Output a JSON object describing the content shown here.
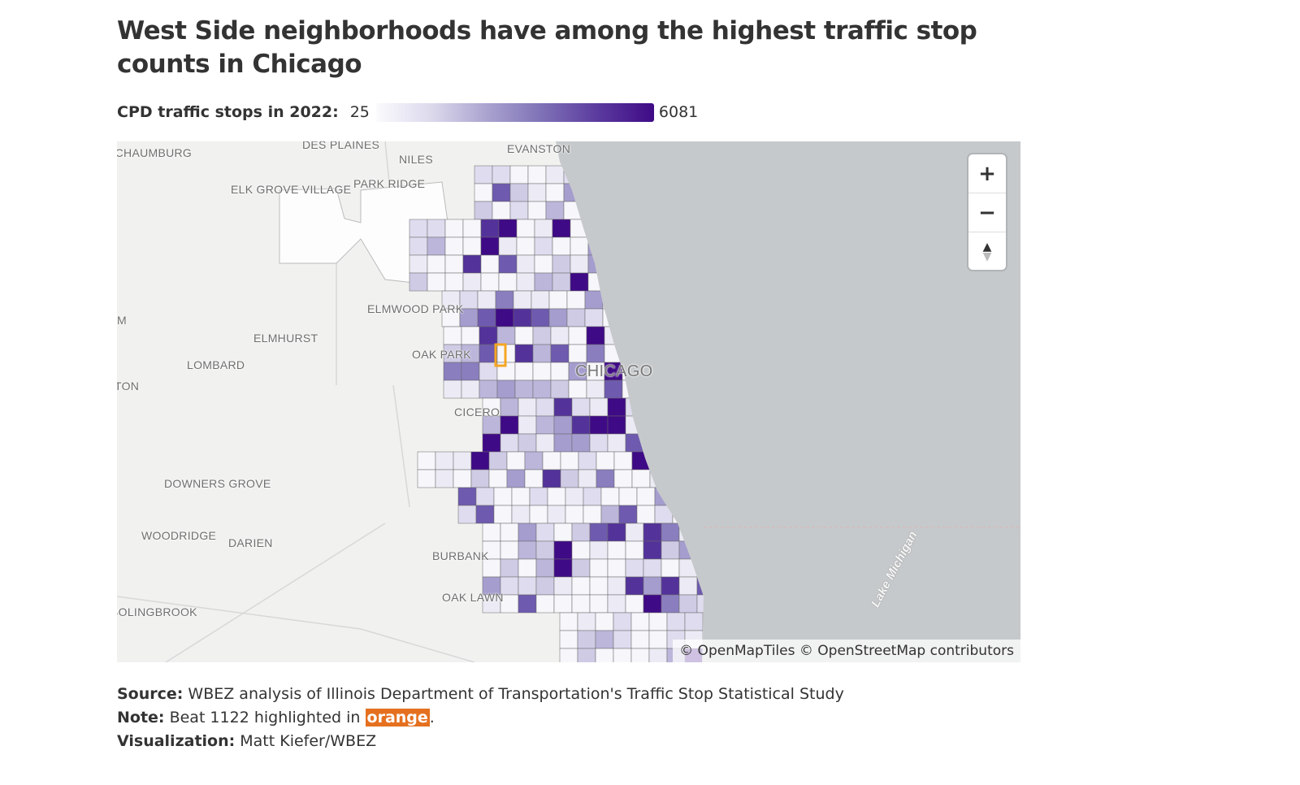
{
  "title": "West Side neighborhoods have among the highest traffic stop counts in Chicago",
  "legend": {
    "label": "CPD traffic stops in 2022:",
    "min": "25",
    "max": "6081",
    "color_low": "#fbfafd",
    "color_high": "#3f0a86"
  },
  "map": {
    "labels": [
      "DES PLAINES",
      "NILES",
      "EVANSTON",
      "SCHAUMBURG",
      "ELK GROVE VILLAGE",
      "PARK RIDGE",
      "ELMWOOD PARK",
      "ELMHURST",
      "OAK PARK",
      "LOMBARD",
      "CHICAGO",
      "CICERO",
      "DOWNERS GROVE",
      "WOODRIDGE",
      "DARIEN",
      "BURBANK",
      "OAK LAWN",
      "BOLINGBROOK",
      "M",
      "TON"
    ],
    "lake_label": "Lake Michigan",
    "highlight_color": "#f5a623",
    "lake_color": "#c6c9cb",
    "land_color": "#f1f1ef",
    "controls": {
      "zoom_in": "+",
      "zoom_out": "−",
      "compass_up": "▲",
      "compass_down": "▼"
    },
    "attribution": "© OpenMapTiles © OpenStreetMap contributors"
  },
  "notes": {
    "source_label": "Source:",
    "source_text": " WBEZ analysis of Illinois Department of Transportation's Traffic Stop Statistical Study",
    "note_label": "Note:",
    "note_text_before": " Beat 1122 highlighted in ",
    "note_highlight": "orange",
    "note_text_after": ".",
    "viz_label": "Visualization:",
    "viz_text": " Matt Kiefer/WBEZ"
  }
}
